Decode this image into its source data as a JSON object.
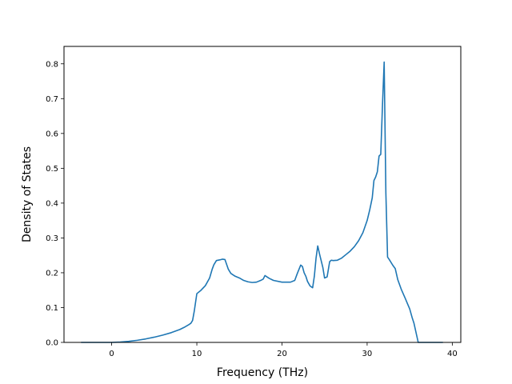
{
  "chart_data": {
    "type": "line",
    "title": "",
    "xlabel": "Frequency (THz)",
    "ylabel": "Density of States",
    "xlim": [
      -5.6,
      41.0
    ],
    "ylim": [
      0.0,
      0.85
    ],
    "xticks": [
      {
        "value": 0,
        "label": "0"
      },
      {
        "value": 10,
        "label": "10"
      },
      {
        "value": 20,
        "label": "20"
      },
      {
        "value": 30,
        "label": "30"
      },
      {
        "value": 40,
        "label": "40"
      }
    ],
    "yticks": [
      {
        "value": 0.0,
        "label": "0.0"
      },
      {
        "value": 0.1,
        "label": "0.1"
      },
      {
        "value": 0.2,
        "label": "0.2"
      },
      {
        "value": 0.3,
        "label": "0.3"
      },
      {
        "value": 0.4,
        "label": "0.4"
      },
      {
        "value": 0.5,
        "label": "0.5"
      },
      {
        "value": 0.6,
        "label": "0.6"
      },
      {
        "value": 0.7,
        "label": "0.7"
      },
      {
        "value": 0.8,
        "label": "0.8"
      }
    ],
    "grid": false,
    "series": [
      {
        "color": "#1f77b4",
        "x": [
          -3.6,
          -1.0,
          0.0,
          1.0,
          2.0,
          3.0,
          4.0,
          5.0,
          6.0,
          7.0,
          8.0,
          8.5,
          9.0,
          9.3,
          9.5,
          9.7,
          10.0,
          10.5,
          11.0,
          11.5,
          11.8,
          12.0,
          12.3,
          12.7,
          13.0,
          13.3,
          13.7,
          14.0,
          14.5,
          15.0,
          15.5,
          16.0,
          16.5,
          17.0,
          17.5,
          17.8,
          18.0,
          18.5,
          19.0,
          20.0,
          21.0,
          21.5,
          21.8,
          22.0,
          22.2,
          22.4,
          22.6,
          22.8,
          23.0,
          23.3,
          23.6,
          23.8,
          24.0,
          24.2,
          24.4,
          24.6,
          24.8,
          25.0,
          25.3,
          25.6,
          25.8,
          26.0,
          26.5,
          27.0,
          27.5,
          28.0,
          28.5,
          29.0,
          29.5,
          30.0,
          30.3,
          30.6,
          30.8,
          31.0,
          31.2,
          31.4,
          31.6,
          31.8,
          32.0,
          32.2,
          32.4,
          32.6,
          33.0,
          33.3,
          33.6,
          34.0,
          34.5,
          35.0,
          35.3,
          35.5,
          36.0,
          37.0,
          38.0,
          38.9
        ],
        "y": [
          0.0,
          0.0,
          0.0,
          0.001,
          0.003,
          0.006,
          0.01,
          0.015,
          0.021,
          0.028,
          0.037,
          0.043,
          0.05,
          0.055,
          0.063,
          0.09,
          0.14,
          0.15,
          0.163,
          0.185,
          0.21,
          0.223,
          0.235,
          0.237,
          0.239,
          0.238,
          0.21,
          0.198,
          0.19,
          0.185,
          0.178,
          0.174,
          0.172,
          0.173,
          0.178,
          0.182,
          0.192,
          0.184,
          0.178,
          0.173,
          0.173,
          0.178,
          0.198,
          0.21,
          0.222,
          0.218,
          0.2,
          0.19,
          0.175,
          0.162,
          0.157,
          0.19,
          0.242,
          0.277,
          0.255,
          0.235,
          0.215,
          0.185,
          0.188,
          0.232,
          0.236,
          0.235,
          0.236,
          0.242,
          0.252,
          0.262,
          0.275,
          0.292,
          0.315,
          0.35,
          0.38,
          0.415,
          0.465,
          0.475,
          0.49,
          0.535,
          0.54,
          0.68,
          0.805,
          0.43,
          0.245,
          0.238,
          0.222,
          0.212,
          0.18,
          0.153,
          0.125,
          0.096,
          0.07,
          0.055,
          0.0,
          0.0,
          0.0,
          0.0
        ]
      }
    ]
  }
}
